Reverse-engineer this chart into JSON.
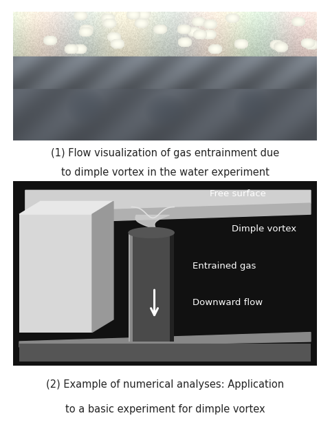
{
  "bg_color": "#ffffff",
  "diagram_bg_color": "#111111",
  "caption1_line1": "(1) Flow visualization of gas entrainment due",
  "caption1_line2": "to dimple vortex in the water experiment",
  "caption2_line1": "(2) Example of numerical analyses: Application",
  "caption2_line2": "to a basic experiment for dimple vortex",
  "label_free_surface": "Free surface",
  "label_dimple_vortex": "Dimple vortex",
  "label_entrained_gas": "Entrained gas",
  "label_downward_flow": "Downward flow",
  "caption_fontsize": 10.5,
  "label_fontsize": 9.5,
  "text_color_dark": "#222222",
  "text_color_white": "#ffffff"
}
